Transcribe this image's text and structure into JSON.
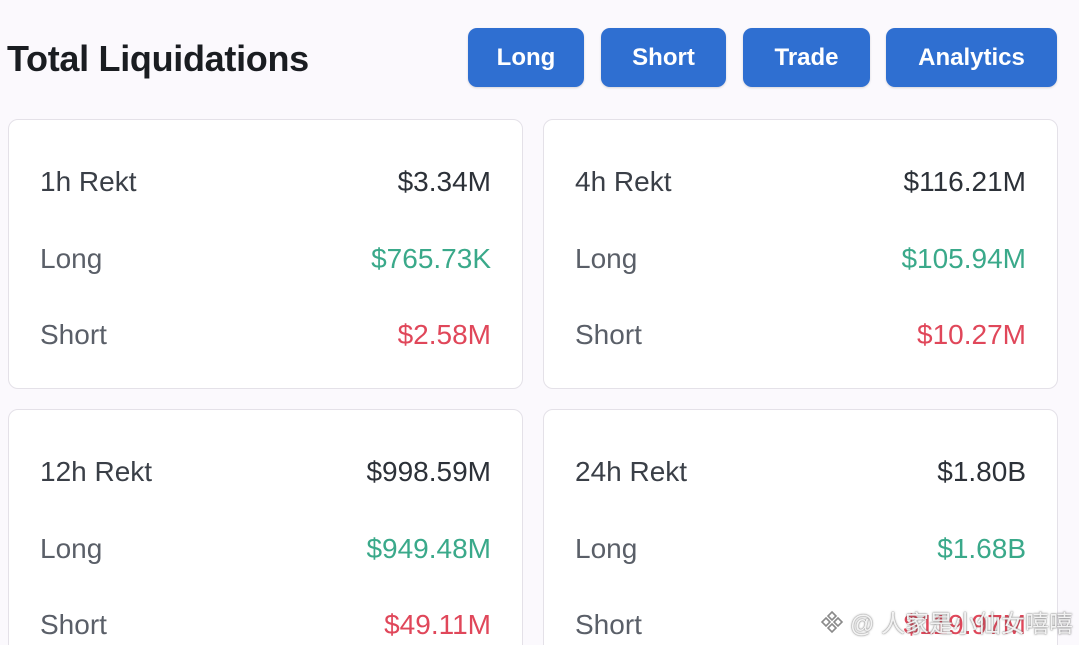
{
  "header": {
    "title": "Total Liquidations",
    "buttons": {
      "long": "Long",
      "short": "Short",
      "trade": "Trade",
      "analytics": "Analytics"
    }
  },
  "cards": [
    {
      "period": "1h Rekt",
      "total": "$3.34M",
      "long_label": "Long",
      "long": "$765.73K",
      "short_label": "Short",
      "short": "$2.58M"
    },
    {
      "period": "4h Rekt",
      "total": "$116.21M",
      "long_label": "Long",
      "long": "$105.94M",
      "short_label": "Short",
      "short": "$10.27M"
    },
    {
      "period": "12h Rekt",
      "total": "$998.59M",
      "long_label": "Long",
      "long": "$949.48M",
      "short_label": "Short",
      "short": "$49.11M"
    },
    {
      "period": "24h Rekt",
      "total": "$1.80B",
      "long_label": "Long",
      "long": "$1.68B",
      "short_label": "Short",
      "short": "$119.97M"
    }
  ],
  "colors": {
    "button": "#2f6fd1",
    "long": "#3aa98a",
    "short": "#e0475a"
  },
  "watermark": {
    "text": "@ 人家是小仙女嘻嘻",
    "icon": "binance-square-icon"
  }
}
